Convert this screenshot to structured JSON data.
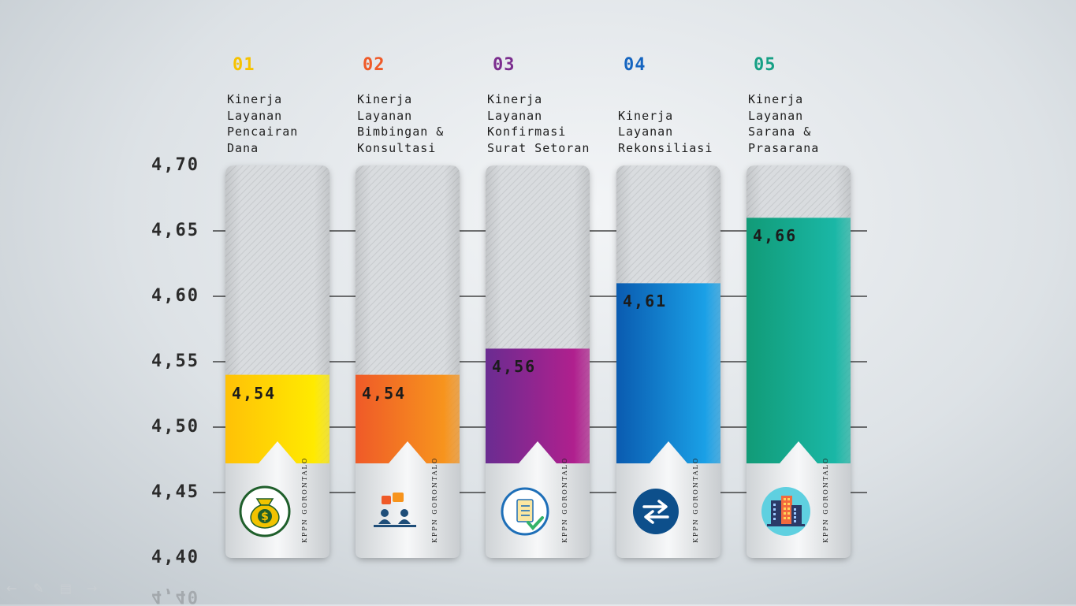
{
  "chart_data": {
    "type": "bar",
    "categories": [
      "Kinerja\nLayanan\nPencairan\nDana",
      "Kinerja\nLayanan\nBimbingan &\nKonsultasi",
      "Kinerja\nLayanan\nKonfirmasi\nSurat Setoran",
      "Kinerja\nLayanan\nRekonsiliasi",
      "Kinerja\nLayanan\nSarana &\nPrasarana"
    ],
    "numbers": [
      "01",
      "02",
      "03",
      "04",
      "05"
    ],
    "values": [
      4.54,
      4.54,
      4.56,
      4.61,
      4.66
    ],
    "value_labels": [
      "4,54",
      "4,54",
      "4,56",
      "4,61",
      "4,66"
    ],
    "ylim": [
      4.4,
      4.7
    ],
    "y_ticks": [
      4.7,
      4.65,
      4.6,
      4.55,
      4.5,
      4.45,
      4.4
    ],
    "y_tick_labels": [
      "4,70",
      "4,65",
      "4,60",
      "4,55",
      "4,50",
      "4,45",
      "4,40"
    ],
    "grid": true,
    "bar_colors": [
      [
        "#ffc107",
        "#ffea00"
      ],
      [
        "#ef5a28",
        "#f7941d"
      ],
      [
        "#6a2c91",
        "#b0208e"
      ],
      [
        "#0a5bb0",
        "#1aa0e6"
      ],
      [
        "#119b77",
        "#1ab7a6"
      ]
    ],
    "number_colors": [
      "#f6c200",
      "#ef5a28",
      "#7b2d8e",
      "#1565c0",
      "#16a085"
    ],
    "icons": [
      "money-bag-icon",
      "consultation-icon",
      "document-check-icon",
      "exchange-arrows-icon",
      "building-icon"
    ],
    "card_text": "KPPN\nGORONTALO",
    "footer_reflection": "4,40"
  }
}
